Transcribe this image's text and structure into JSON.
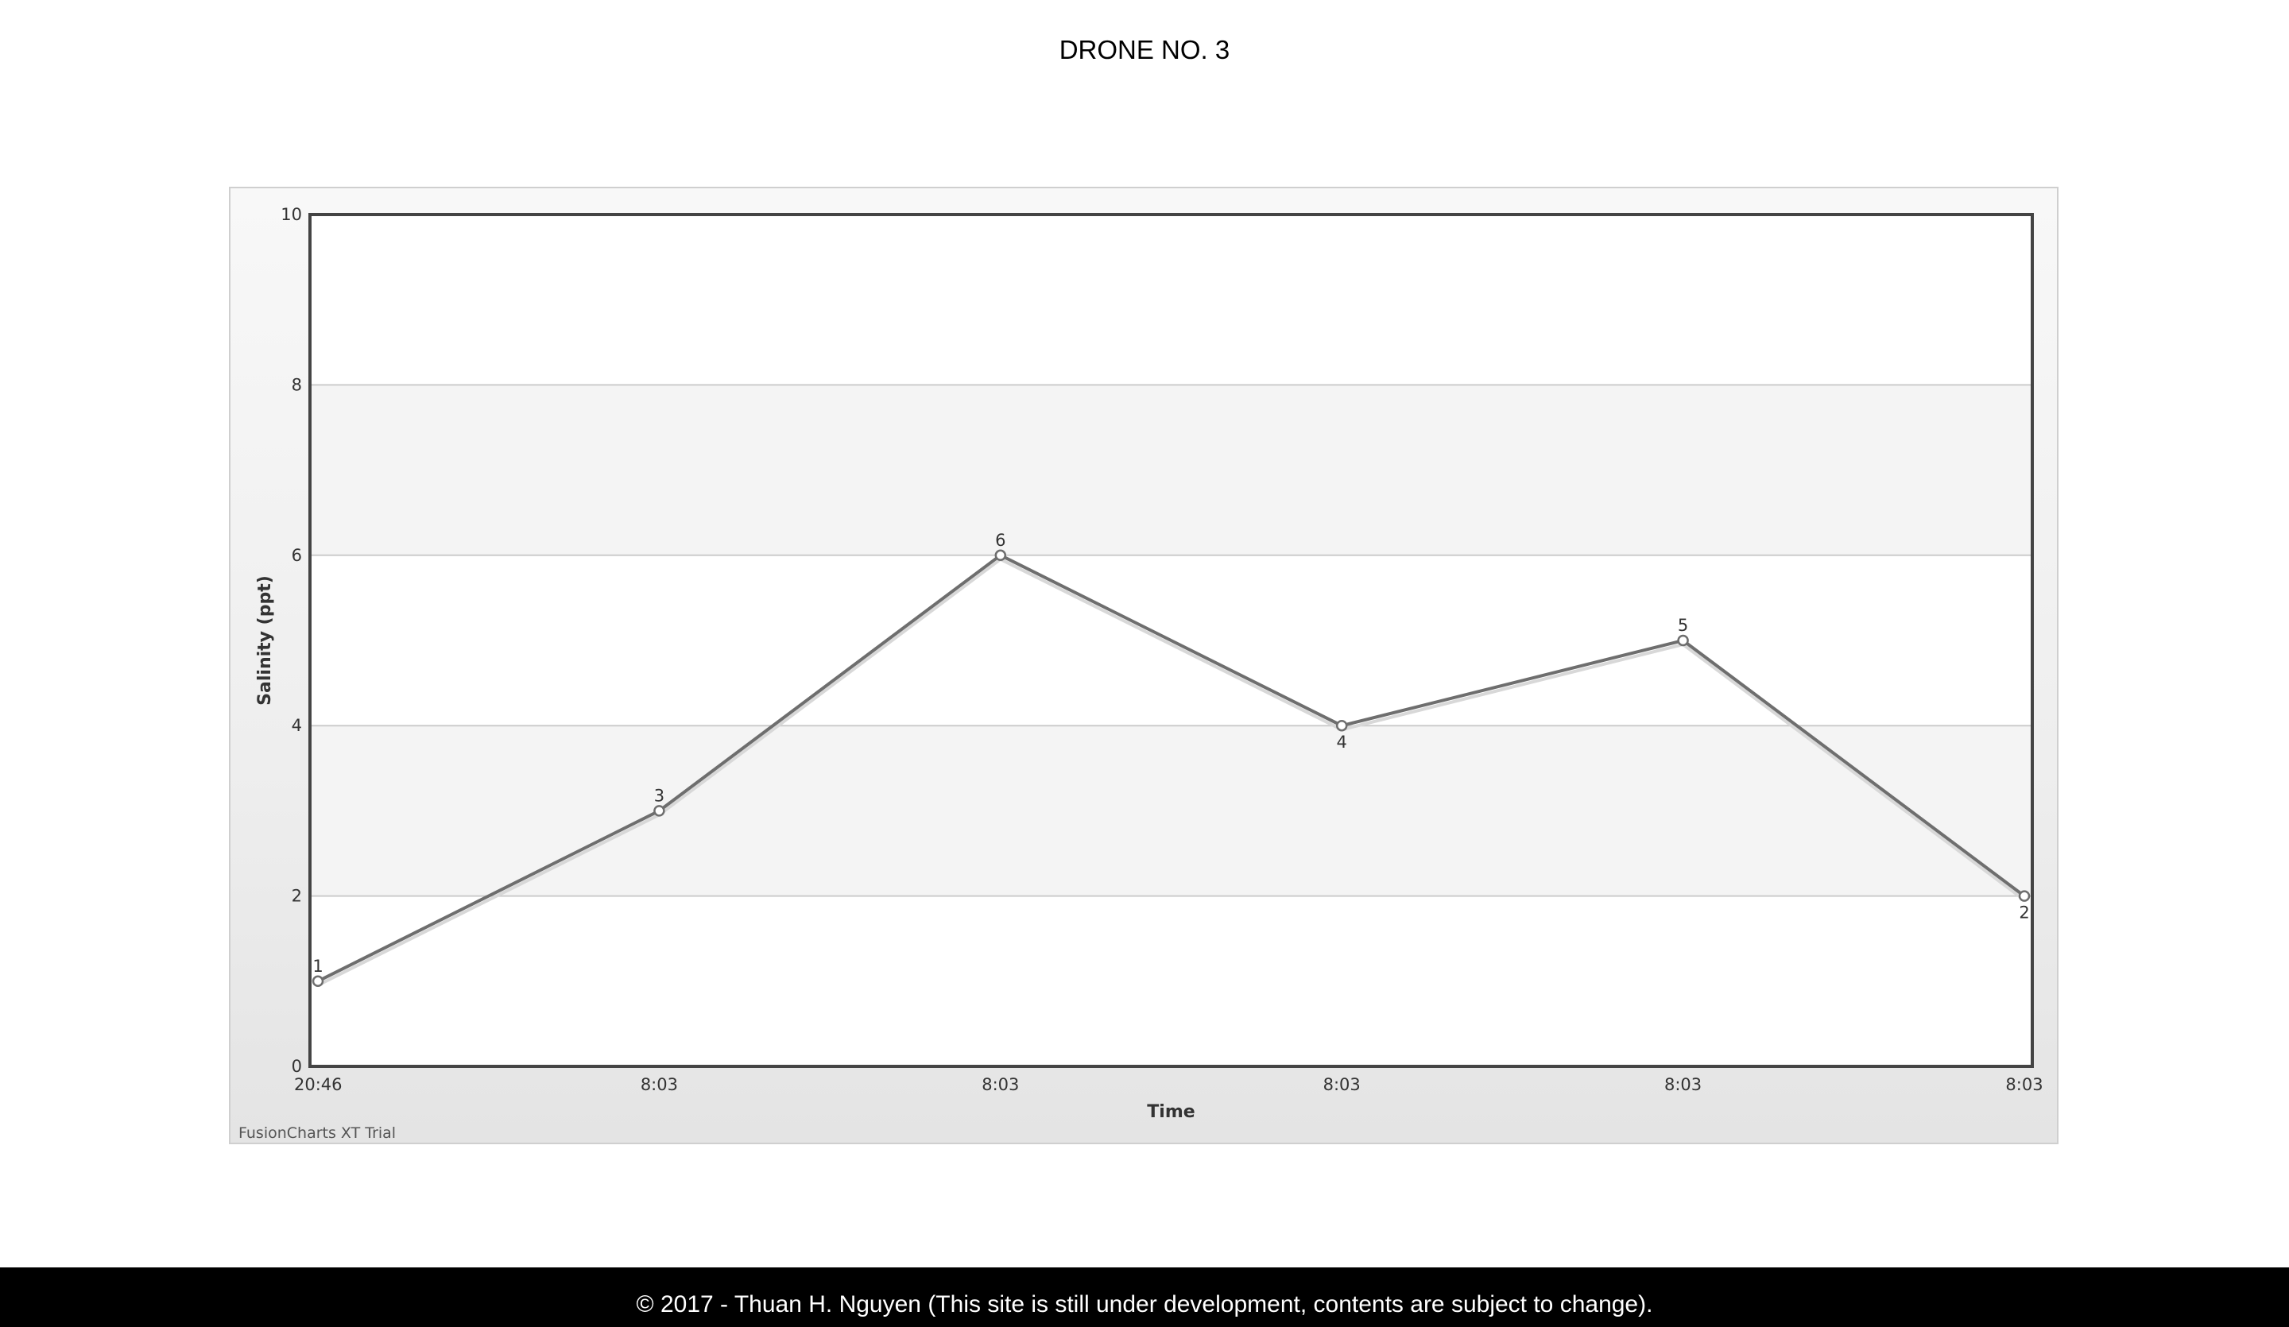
{
  "page": {
    "title": "DRONE NO. 3",
    "footer": "© 2017 - Thuan H. Nguyen (This site is still under development, contents are subject to change)."
  },
  "chart_data": {
    "type": "line",
    "title": "",
    "xlabel": "Time",
    "ylabel": "Salinity (ppt)",
    "categories": [
      "20:46",
      "8:03",
      "8:03",
      "8:03",
      "8:03",
      "8:03"
    ],
    "series": [
      {
        "values": [
          1,
          3,
          6,
          4,
          5,
          2
        ]
      }
    ],
    "data_labels": [
      "1",
      "3",
      "6",
      "4",
      "5",
      "2"
    ],
    "ylim": [
      0,
      10
    ],
    "yticks": [
      "0",
      "2",
      "4",
      "6",
      "8",
      "10"
    ],
    "grid": true,
    "alternate_bands": true,
    "watermark": "FusionCharts XT Trial",
    "colors": {
      "line": "#6e6e6e",
      "band": "#f4f4f4",
      "grid": "#cccccc",
      "plot_border": "#444444"
    }
  }
}
